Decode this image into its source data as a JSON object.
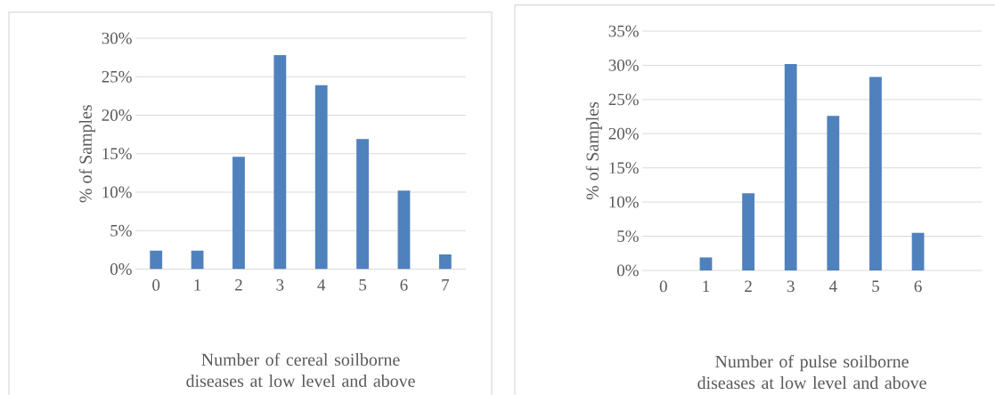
{
  "chart_data": [
    {
      "type": "bar",
      "categories": [
        "0",
        "1",
        "2",
        "3",
        "4",
        "5",
        "6",
        "7"
      ],
      "values": [
        2.4,
        2.4,
        14.6,
        27.8,
        23.9,
        16.9,
        10.2,
        1.9
      ],
      "color": "#4f81bd",
      "xlabel": "Number of cereal soilborne diseases at low level and above",
      "ylabel": "% of Samples",
      "ylim": [
        0,
        30
      ],
      "yticks": [
        {
          "value": 0,
          "label": "0%"
        },
        {
          "value": 5,
          "label": "5%"
        },
        {
          "value": 10,
          "label": "10%"
        },
        {
          "value": 15,
          "label": "15%"
        },
        {
          "value": 20,
          "label": "20%"
        },
        {
          "value": 25,
          "label": "25%"
        },
        {
          "value": 30,
          "label": "30%"
        }
      ],
      "grid": "y"
    },
    {
      "type": "bar",
      "categories": [
        "0",
        "1",
        "2",
        "3",
        "4",
        "5",
        "6",
        null
      ],
      "values": [
        0,
        1.9,
        11.3,
        30.2,
        22.6,
        28.3,
        5.5,
        null
      ],
      "color": "#4f81bd",
      "xlabel": "Number of pulse soilborne diseases at low level and above",
      "ylabel": "% of Samples",
      "ylim": [
        0,
        35
      ],
      "yticks": [
        {
          "value": 0,
          "label": "0%"
        },
        {
          "value": 5,
          "label": "5%"
        },
        {
          "value": 10,
          "label": "10%"
        },
        {
          "value": 15,
          "label": "15%"
        },
        {
          "value": 20,
          "label": "20%"
        },
        {
          "value": 25,
          "label": "25%"
        },
        {
          "value": 30,
          "label": "30%"
        },
        {
          "value": 35,
          "label": "35%"
        }
      ],
      "grid": "y"
    }
  ]
}
